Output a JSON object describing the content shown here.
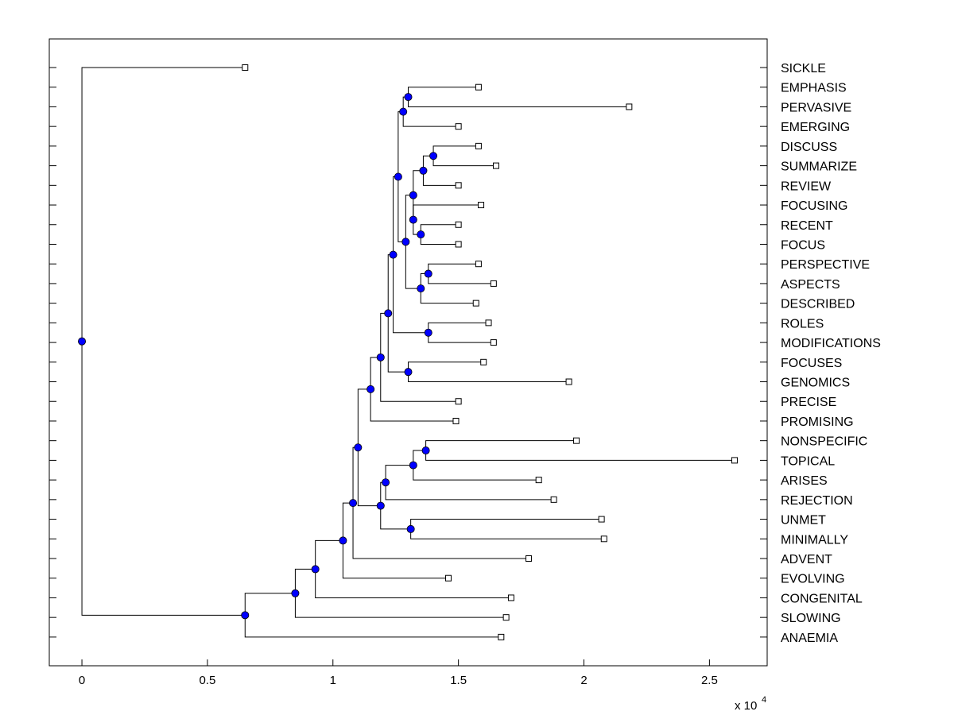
{
  "chart_data": {
    "type": "dendrogram",
    "orientation": "horizontal",
    "title": "",
    "xlabel": "",
    "ylabel": "",
    "x_exponent_label": "x 10",
    "x_exponent": "4",
    "xlim": [
      -0.13,
      2.73
    ],
    "xticks": [
      0,
      0.5,
      1,
      1.5,
      2,
      2.5
    ],
    "xtick_labels": [
      "0",
      "0.5",
      "1",
      "1.5",
      "2",
      "2.5"
    ],
    "leaf_labels": [
      "SICKLE",
      "EMPHASIS",
      "PERVASIVE",
      "EMERGING",
      "DISCUSS",
      "SUMMARIZE",
      "REVIEW",
      "FOCUSING",
      "RECENT",
      "FOCUS",
      "PERSPECTIVE",
      "ASPECTS",
      "DESCRIBED",
      "ROLES",
      "MODIFICATIONS",
      "FOCUSES",
      "GENOMICS",
      "PRECISE",
      "PROMISING",
      "NONSPECIFIC",
      "TOPICAL",
      "ARISES",
      "REJECTION",
      "UNMET",
      "MINIMALLY",
      "ADVENT",
      "EVOLVING",
      "CONGENITAL",
      "SLOWING",
      "ANAEMIA"
    ],
    "leaf_values": [
      0.65,
      1.58,
      2.18,
      1.5,
      1.58,
      1.65,
      1.5,
      1.59,
      1.5,
      1.5,
      1.58,
      1.64,
      1.57,
      1.62,
      1.64,
      1.6,
      1.94,
      1.5,
      1.49,
      1.97,
      2.6,
      1.82,
      1.88,
      2.07,
      2.08,
      1.78,
      1.46,
      1.71,
      1.69,
      1.67
    ],
    "internal_nodes": [
      {
        "id": "n1",
        "x": 1.3,
        "children": [
          "EMPHASIS",
          "PERVASIVE"
        ]
      },
      {
        "id": "n2",
        "x": 1.28,
        "children": [
          "n1",
          "EMERGING"
        ]
      },
      {
        "id": "n3",
        "x": 1.4,
        "children": [
          "DISCUSS",
          "SUMMARIZE"
        ]
      },
      {
        "id": "n4",
        "x": 1.36,
        "children": [
          "n3",
          "REVIEW"
        ]
      },
      {
        "id": "n5",
        "x": 1.35,
        "children": [
          "RECENT",
          "FOCUS"
        ]
      },
      {
        "id": "n6",
        "x": 1.32,
        "children": [
          "FOCUSING",
          "n5"
        ]
      },
      {
        "id": "n7",
        "x": 1.32,
        "children": [
          "n4",
          "n6"
        ]
      },
      {
        "id": "n8",
        "x": 1.38,
        "children": [
          "PERSPECTIVE",
          "ASPECTS"
        ]
      },
      {
        "id": "n9",
        "x": 1.35,
        "children": [
          "n8",
          "DESCRIBED"
        ]
      },
      {
        "id": "n10",
        "x": 1.29,
        "children": [
          "n7",
          "n9"
        ]
      },
      {
        "id": "n11",
        "x": 1.26,
        "children": [
          "n2",
          "n10"
        ]
      },
      {
        "id": "n12",
        "x": 1.38,
        "children": [
          "ROLES",
          "MODIFICATIONS"
        ]
      },
      {
        "id": "n13",
        "x": 1.24,
        "children": [
          "n11",
          "n12"
        ]
      },
      {
        "id": "n14",
        "x": 1.3,
        "children": [
          "FOCUSES",
          "GENOMICS"
        ]
      },
      {
        "id": "n15",
        "x": 1.22,
        "children": [
          "n13",
          "n14"
        ]
      },
      {
        "id": "n16",
        "x": 1.19,
        "children": [
          "n15",
          "PRECISE"
        ]
      },
      {
        "id": "n17",
        "x": 1.15,
        "children": [
          "n16",
          "PROMISING"
        ]
      },
      {
        "id": "n18",
        "x": 1.37,
        "children": [
          "NONSPECIFIC",
          "TOPICAL"
        ]
      },
      {
        "id": "n19",
        "x": 1.32,
        "children": [
          "n18",
          "ARISES"
        ]
      },
      {
        "id": "n20",
        "x": 1.21,
        "children": [
          "n19",
          "REJECTION"
        ]
      },
      {
        "id": "n21",
        "x": 1.31,
        "children": [
          "UNMET",
          "MINIMALLY"
        ]
      },
      {
        "id": "n22",
        "x": 1.19,
        "children": [
          "n20",
          "n21"
        ]
      },
      {
        "id": "n23",
        "x": 1.1,
        "children": [
          "n17",
          "n22"
        ]
      },
      {
        "id": "n24",
        "x": 1.08,
        "children": [
          "n23",
          "ADVENT"
        ]
      },
      {
        "id": "n25",
        "x": 1.04,
        "children": [
          "n24",
          "EVOLVING"
        ]
      },
      {
        "id": "n26",
        "x": 0.93,
        "children": [
          "n25",
          "CONGENITAL"
        ]
      },
      {
        "id": "n27",
        "x": 0.85,
        "children": [
          "n26",
          "SLOWING"
        ]
      },
      {
        "id": "n28",
        "x": 0.65,
        "children": [
          "n27",
          "ANAEMIA"
        ]
      },
      {
        "id": "root",
        "x": 0.0,
        "children": [
          "SICKLE",
          "n28"
        ]
      }
    ],
    "node_color": "#0000ff",
    "line_color": "#000000",
    "leaf_marker_color": "#ffffff"
  }
}
